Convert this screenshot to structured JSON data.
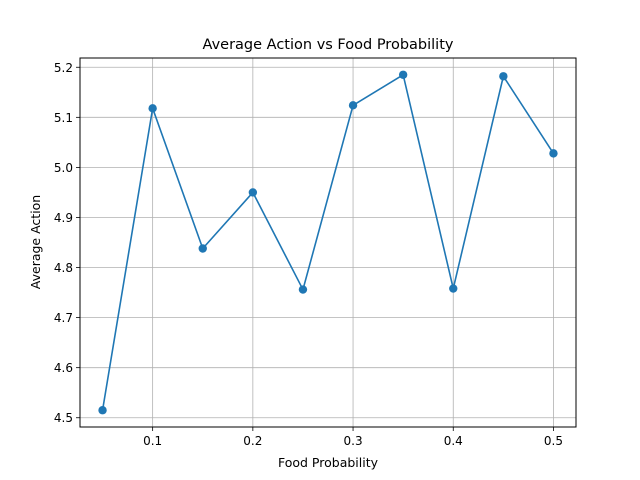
{
  "chart_data": {
    "type": "line",
    "title": "Average Action vs Food Probability",
    "xlabel": "Food Probability",
    "ylabel": "Average Action",
    "x": [
      0.05,
      0.1,
      0.15,
      0.2,
      0.25,
      0.3,
      0.35,
      0.4,
      0.45,
      0.5
    ],
    "series": [
      {
        "values": [
          4.515,
          5.118,
          4.838,
          4.95,
          4.756,
          5.124,
          5.185,
          4.758,
          5.182,
          5.028
        ],
        "color": "#1f77b4",
        "marker": "circle"
      }
    ],
    "xlim": [
      0.0275,
      0.5225
    ],
    "ylim": [
      4.4815,
      5.2185
    ],
    "xticks": [
      0.1,
      0.2,
      0.3,
      0.4,
      0.5
    ],
    "xtick_labels": [
      "0.1",
      "0.2",
      "0.3",
      "0.4",
      "0.5"
    ],
    "yticks": [
      4.5,
      4.6,
      4.7,
      4.8,
      4.9,
      5.0,
      5.1,
      5.2
    ],
    "ytick_labels": [
      "4.5",
      "4.6",
      "4.7",
      "4.8",
      "4.9",
      "5.0",
      "5.1",
      "5.2"
    ],
    "grid": true,
    "legend": "none"
  }
}
